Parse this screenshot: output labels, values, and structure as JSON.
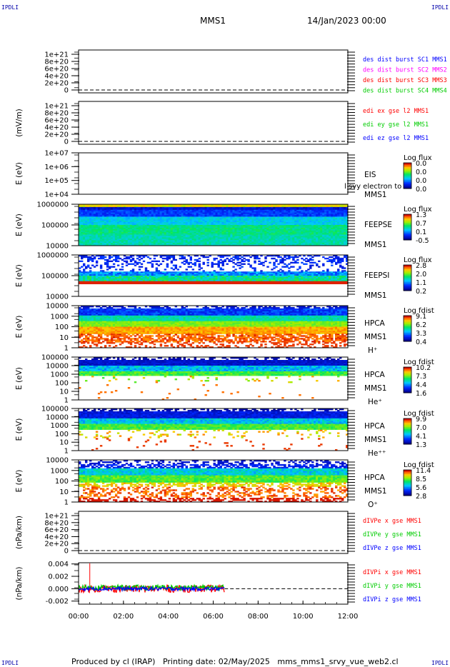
{
  "corner_labels": [
    "IPDLI",
    "IPDLI",
    "IPDLI",
    "IPDLI"
  ],
  "header": {
    "spacecraft": "MMS1",
    "date": "14/Jan/2023 00:00"
  },
  "footer": {
    "text": "Produced by cl (IRAP)   Printing date: 02/May/2025   mms_mms1_srvy_vue_web2.cl"
  },
  "colors": {
    "red": "#ff0000",
    "green": "#00cc00",
    "blue": "#0000ff",
    "magenta": "#ff00ff"
  },
  "chart_data": {
    "type": "heatmap",
    "x_axis": {
      "start": "00:00",
      "end": "12:00",
      "ticks": [
        "00:00",
        "02:00",
        "04:00",
        "06:00",
        "08:00",
        "10:00",
        "12:00"
      ],
      "data_end": "06:30"
    },
    "panels": [
      {
        "id": "des",
        "kind": "line",
        "ylabel": "",
        "yticks": [
          "1e+21",
          "8e+20",
          "6e+20",
          "4e+20",
          "2e+20",
          "0"
        ],
        "zero_line": true,
        "legend": [
          {
            "text": "des dist burst SC1 MMS1",
            "color": "#0000ff"
          },
          {
            "text": "des dist burst SC2 MMS2",
            "color": "#ff00ff"
          },
          {
            "text": "des dist burst SC3 MMS3",
            "color": "#ff0000"
          },
          {
            "text": "des dist burst SC4 MMS4",
            "color": "#00cc00"
          }
        ]
      },
      {
        "id": "edi",
        "kind": "line",
        "ylabel": "(mV/m)",
        "yticks": [
          "1e+21",
          "8e+20",
          "6e+20",
          "4e+20",
          "2e+20",
          "0"
        ],
        "zero_line": true,
        "legend": [
          {
            "text": "edi ex gse l2 MMS1",
            "color": "#ff0000"
          },
          {
            "text": "edi ey gse l2 MMS1",
            "color": "#00cc00"
          },
          {
            "text": "edi ez gse l2 MMS1",
            "color": "#0000ff"
          }
        ]
      },
      {
        "id": "eis",
        "kind": "spectrogram",
        "ylabel": "E (eV)",
        "yticks": [
          "1e+07",
          "1e+06",
          "1e+05",
          "1e+04"
        ],
        "pattern": "empty",
        "right_labels": [
          "EIS",
          "l svy electron to",
          "MMS1"
        ],
        "cbar_title": "Log flux",
        "cbar_ticks": [
          "0.0",
          "0.0",
          "0.0",
          "0.0"
        ]
      },
      {
        "id": "feepse",
        "kind": "spectrogram",
        "ylabel": "E (eV)",
        "yticks": [
          "1000000",
          "100000",
          "10000"
        ],
        "pattern": "feeps_e",
        "right_labels": [
          "FEEPSE",
          "MMS1"
        ],
        "cbar_title": "Log flux",
        "cbar_ticks": [
          "1.3",
          "0.7",
          "0.1",
          "-0.5"
        ]
      },
      {
        "id": "feepsi",
        "kind": "spectrogram",
        "ylabel": "E (eV)",
        "yticks": [
          "1000000",
          "100000",
          "10000"
        ],
        "pattern": "feeps_i",
        "right_labels": [
          "FEEPSI",
          "MMS1"
        ],
        "cbar_title": "Log flux",
        "cbar_ticks": [
          "2.8",
          "2.0",
          "1.1",
          "0.2"
        ]
      },
      {
        "id": "hpca_h",
        "kind": "spectrogram",
        "ylabel": "E (eV)",
        "yticks": [
          "10000",
          "1000",
          "100",
          "10",
          "1"
        ],
        "pattern": "hpca_h",
        "right_labels": [
          "HPCA",
          "MMS1",
          "H⁺"
        ],
        "cbar_title": "Log fdist",
        "cbar_ticks": [
          "9.1",
          "6.2",
          "3.3",
          "0.4"
        ]
      },
      {
        "id": "hpca_he",
        "kind": "spectrogram",
        "ylabel": "E (eV)",
        "yticks": [
          "100000",
          "10000",
          "1000",
          "100",
          "10",
          "1"
        ],
        "pattern": "hpca_he",
        "right_labels": [
          "HPCA",
          "MMS1",
          "He⁺"
        ],
        "cbar_title": "Log fdist",
        "cbar_ticks": [
          "10.2",
          "7.3",
          "4.4",
          "1.6"
        ]
      },
      {
        "id": "hpca_he2",
        "kind": "spectrogram",
        "ylabel": "E (eV)",
        "yticks": [
          "100000",
          "10000",
          "1000",
          "100",
          "10",
          "1"
        ],
        "pattern": "hpca_he2",
        "right_labels": [
          "HPCA",
          "MMS1",
          "He⁺⁺"
        ],
        "cbar_title": "Log fdist",
        "cbar_ticks": [
          "9.9",
          "7.0",
          "4.1",
          "1.3"
        ]
      },
      {
        "id": "hpca_o",
        "kind": "spectrogram",
        "ylabel": "E (eV)",
        "yticks": [
          "10000",
          "1000",
          "100",
          "10",
          "1"
        ],
        "pattern": "hpca_o",
        "right_labels": [
          "HPCA",
          "MMS1",
          "O⁺"
        ],
        "cbar_title": "Log fdist",
        "cbar_ticks": [
          "11.4",
          "8.5",
          "5.6",
          "2.8"
        ]
      },
      {
        "id": "divpe",
        "kind": "line",
        "ylabel": "(nPa/km)",
        "yticks": [
          "1e+21",
          "8e+20",
          "6e+20",
          "4e+20",
          "2e+20",
          "0"
        ],
        "zero_line": true,
        "legend": [
          {
            "text": "dIVPe x gse MMS1",
            "color": "#ff0000"
          },
          {
            "text": "dIVPe y gse MMS1",
            "color": "#00cc00"
          },
          {
            "text": "dIVPe z gse MMS1",
            "color": "#0000ff"
          }
        ]
      },
      {
        "id": "divpi",
        "kind": "line",
        "ylabel": "(nPa/km)",
        "yticks": [
          "0.004",
          "0.002",
          "0.000",
          "-0.002"
        ],
        "ylim": [
          -0.0025,
          0.0042
        ],
        "zero_line": true,
        "legend": [
          {
            "text": "dIVPi x gse MMS1",
            "color": "#ff0000"
          },
          {
            "text": "dIVPi y gse MMS1",
            "color": "#00cc00"
          },
          {
            "text": "dIVPi z gse MMS1",
            "color": "#0000ff"
          }
        ],
        "series": [
          {
            "name": "dIVPi x gse MMS1",
            "color": "#ff0000",
            "baseline": 0.0,
            "spread": 0.0006,
            "spike": {
              "x": "00:30",
              "value": 0.0041
            }
          },
          {
            "name": "dIVPi y gse MMS1",
            "color": "#00cc00",
            "baseline": 0.0002,
            "spread": 0.0004
          },
          {
            "name": "dIVPi z gse MMS1",
            "color": "#0000ff",
            "baseline": 0.0,
            "spread": 0.0003
          }
        ]
      }
    ]
  }
}
